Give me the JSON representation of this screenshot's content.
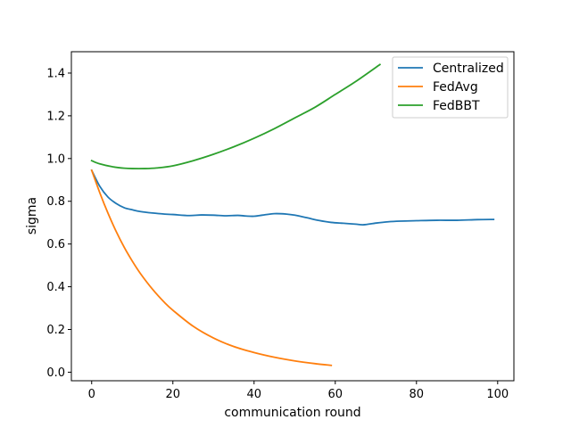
{
  "chart_data": {
    "type": "line",
    "title": "",
    "xlabel": "communication round",
    "ylabel": "sigma",
    "xlim": [
      -5,
      104
    ],
    "ylim": [
      -0.04,
      1.5
    ],
    "xticks": [
      0,
      20,
      40,
      60,
      80,
      100
    ],
    "yticks": [
      0.0,
      0.2,
      0.4,
      0.6,
      0.8,
      1.0,
      1.2,
      1.4
    ],
    "ytick_labels": [
      "0.0",
      "0.2",
      "0.4",
      "0.6",
      "0.8",
      "1.0",
      "1.2",
      "1.4"
    ],
    "grid": false,
    "legend_position": "top-right",
    "series": [
      {
        "name": "Centralized",
        "color": "#1f77b4",
        "x": [
          0,
          2,
          4,
          6,
          8,
          10,
          12,
          15,
          18,
          20,
          24,
          27,
          30,
          33,
          36,
          38,
          40,
          42,
          45,
          48,
          50,
          53,
          56,
          59,
          62,
          65,
          67,
          70,
          73,
          76,
          80,
          85,
          90,
          95,
          99
        ],
        "y": [
          0.945,
          0.87,
          0.82,
          0.79,
          0.77,
          0.76,
          0.752,
          0.745,
          0.74,
          0.738,
          0.733,
          0.736,
          0.735,
          0.732,
          0.734,
          0.731,
          0.73,
          0.735,
          0.742,
          0.74,
          0.735,
          0.723,
          0.71,
          0.701,
          0.697,
          0.693,
          0.69,
          0.698,
          0.704,
          0.707,
          0.709,
          0.711,
          0.711,
          0.714,
          0.715
        ]
      },
      {
        "name": "FedAvg",
        "color": "#ff7f0e",
        "x": [
          0,
          2,
          4,
          6,
          8,
          10,
          12,
          15,
          18,
          20,
          25,
          30,
          35,
          40,
          45,
          50,
          55,
          59
        ],
        "y": [
          0.945,
          0.84,
          0.745,
          0.66,
          0.585,
          0.52,
          0.462,
          0.388,
          0.325,
          0.29,
          0.215,
          0.16,
          0.12,
          0.092,
          0.07,
          0.053,
          0.04,
          0.032
        ]
      },
      {
        "name": "FedBBT",
        "color": "#2ca02c",
        "x": [
          0,
          2,
          5,
          8,
          10,
          13,
          16,
          20,
          25,
          30,
          35,
          40,
          45,
          50,
          55,
          60,
          65,
          71
        ],
        "y": [
          0.99,
          0.975,
          0.962,
          0.955,
          0.953,
          0.953,
          0.956,
          0.966,
          0.99,
          1.02,
          1.055,
          1.095,
          1.14,
          1.19,
          1.24,
          1.3,
          1.36,
          1.44
        ]
      }
    ]
  }
}
